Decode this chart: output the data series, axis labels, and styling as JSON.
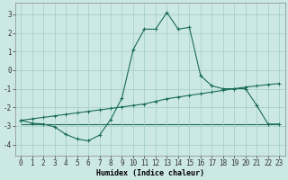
{
  "xlabel": "Humidex (Indice chaleur)",
  "background_color": "#cce8e4",
  "line_color": "#1a6b5a",
  "grid_color": "#a0ccc8",
  "xlim": [
    -0.5,
    23.5
  ],
  "ylim": [
    -4.6,
    3.6
  ],
  "yticks": [
    -4,
    -3,
    -2,
    -1,
    0,
    1,
    2,
    3
  ],
  "xticks": [
    0,
    1,
    2,
    3,
    4,
    5,
    6,
    7,
    8,
    9,
    10,
    11,
    12,
    13,
    14,
    15,
    16,
    17,
    18,
    19,
    20,
    21,
    22,
    23
  ],
  "series1_x": [
    0,
    1,
    2,
    3,
    4,
    5,
    6,
    7,
    8,
    9,
    10,
    11,
    12,
    13,
    14,
    15,
    16,
    17,
    18,
    19,
    20,
    21,
    22,
    23
  ],
  "series1_y": [
    -2.7,
    -2.85,
    -2.9,
    -3.05,
    -3.45,
    -3.7,
    -3.8,
    -3.5,
    -2.65,
    -1.5,
    1.1,
    2.2,
    2.2,
    3.1,
    2.2,
    2.3,
    -0.3,
    -0.85,
    -1.0,
    -1.0,
    -1.0,
    -1.9,
    -2.9,
    -2.9
  ],
  "series2_x": [
    0,
    1,
    2,
    3,
    4,
    5,
    6,
    7,
    8,
    9,
    10,
    11,
    12,
    13,
    14,
    15,
    16,
    17,
    18,
    19,
    20,
    21,
    22,
    23
  ],
  "series2_y": [
    -2.7,
    -2.62,
    -2.54,
    -2.46,
    -2.38,
    -2.3,
    -2.22,
    -2.14,
    -2.06,
    -1.98,
    -1.9,
    -1.82,
    -1.68,
    -1.54,
    -1.45,
    -1.36,
    -1.27,
    -1.18,
    -1.09,
    -1.0,
    -0.91,
    -0.85,
    -0.78,
    -0.72
  ],
  "series3_x": [
    0,
    23
  ],
  "series3_y": [
    -2.9,
    -2.9
  ],
  "xlabel_fontsize": 6,
  "tick_fontsize": 5.5
}
